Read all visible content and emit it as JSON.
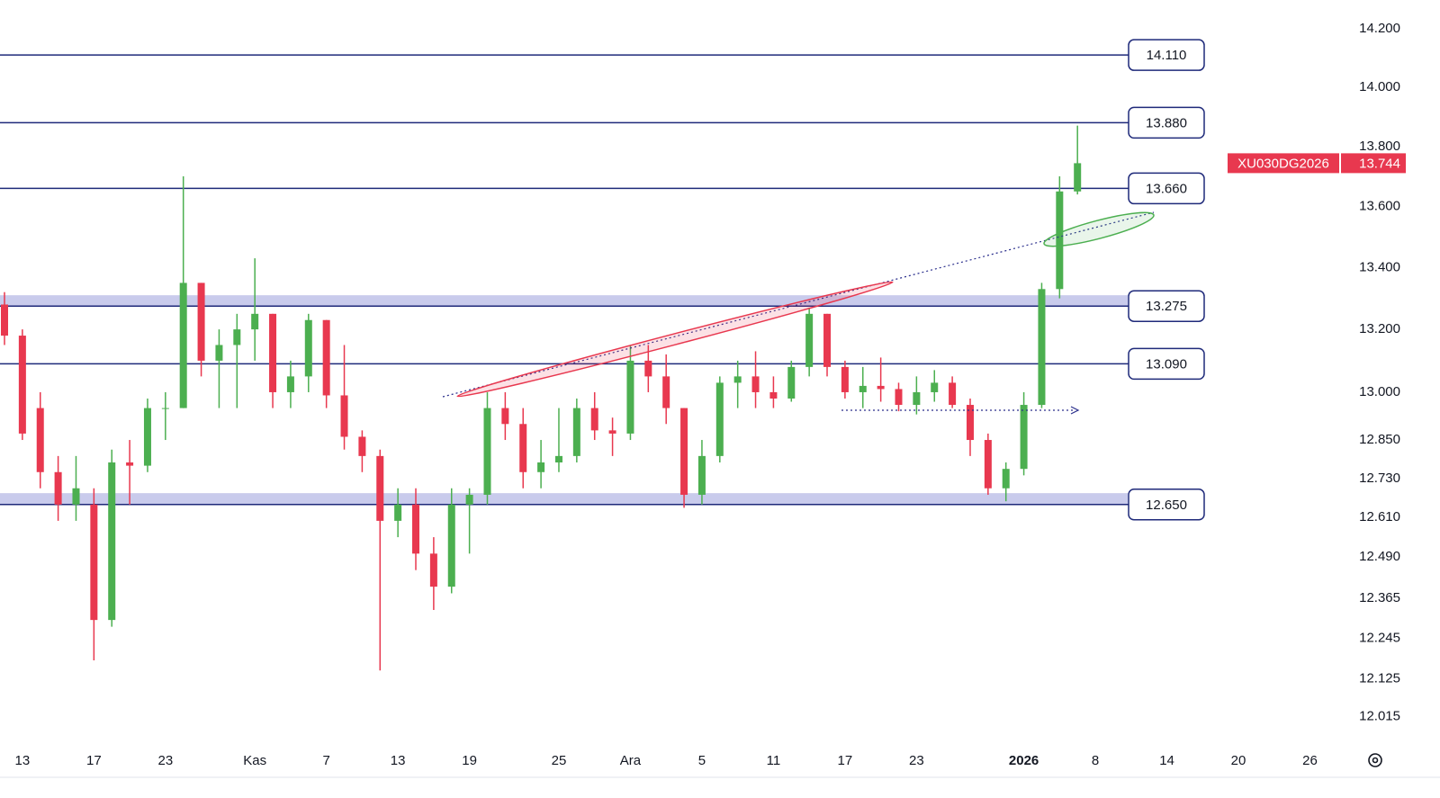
{
  "chart_data": {
    "type": "candlestick",
    "symbol": "XU030DG2026",
    "last_price": {
      "value": 13744,
      "label": "13.744"
    },
    "up_color": "#4caf50",
    "down_color": "#e8384f",
    "level_color": "#1f2a7a",
    "zone_color": "#c9cbec",
    "log_scale": true,
    "ylim": [
      11940,
      14300
    ],
    "yticks": [
      {
        "value": 14200,
        "label": "14.200"
      },
      {
        "value": 14000,
        "label": "14.000"
      },
      {
        "value": 13800,
        "label": "13.800"
      },
      {
        "value": 13600,
        "label": "13.600"
      },
      {
        "value": 13400,
        "label": "13.400"
      },
      {
        "value": 13200,
        "label": "13.200"
      },
      {
        "value": 13000,
        "label": "13.000"
      },
      {
        "value": 12850,
        "label": "12.850"
      },
      {
        "value": 12730,
        "label": "12.730"
      },
      {
        "value": 12610,
        "label": "12.610"
      },
      {
        "value": 12490,
        "label": "12.490"
      },
      {
        "value": 12365,
        "label": "12.365"
      },
      {
        "value": 12245,
        "label": "12.245"
      },
      {
        "value": 12125,
        "label": "12.125"
      },
      {
        "value": 12015,
        "label": "12.015"
      }
    ],
    "levels": [
      {
        "value": 14110,
        "label": "14.110"
      },
      {
        "value": 13880,
        "label": "13.880"
      },
      {
        "value": 13660,
        "label": "13.660"
      },
      {
        "value": 13275,
        "label": "13.275"
      },
      {
        "value": 13090,
        "label": "13.090"
      },
      {
        "value": 12650,
        "label": "12.650"
      }
    ],
    "zones": [
      [
        13275,
        13310
      ],
      [
        12650,
        12685
      ]
    ],
    "categories": [
      null,
      "13",
      null,
      null,
      null,
      "17",
      null,
      null,
      null,
      "23",
      null,
      null,
      null,
      null,
      "Kas",
      null,
      null,
      null,
      "7",
      null,
      null,
      null,
      "13",
      null,
      null,
      null,
      "19",
      null,
      null,
      null,
      null,
      "25",
      null,
      null,
      null,
      "Ara",
      null,
      null,
      null,
      "5",
      null,
      null,
      null,
      "11",
      null,
      null,
      null,
      "17",
      null,
      null,
      null,
      "23",
      null,
      null,
      null,
      null,
      null,
      "2026",
      null,
      null,
      null,
      "8",
      null,
      null,
      null,
      "14",
      null,
      null,
      null,
      "20",
      null,
      null,
      null,
      "26"
    ],
    "open": [
      13280,
      13180,
      12950,
      12750,
      12650,
      12650,
      12300,
      12780,
      12770,
      12950,
      12950,
      13350,
      13100,
      13150,
      13200,
      13250,
      13000,
      13050,
      13230,
      12990,
      12860,
      12800,
      12600,
      12650,
      12500,
      12400,
      12650,
      12680,
      12950,
      12900,
      12750,
      12780,
      12800,
      12950,
      12880,
      12870,
      13100,
      13050,
      12950,
      12680,
      12800,
      13030,
      13050,
      13000,
      12980,
      13080,
      13250,
      13080,
      13000,
      13020,
      13010,
      12960,
      13000,
      13030,
      12960,
      12850,
      12700,
      12760,
      12960,
      13330,
      13650,
      null,
      null,
      null,
      null,
      null,
      null,
      null,
      null,
      null,
      null,
      null,
      null,
      null
    ],
    "high": [
      13320,
      13200,
      13000,
      12800,
      12800,
      12700,
      12820,
      12850,
      12980,
      13000,
      13700,
      13350,
      13200,
      13250,
      13430,
      13250,
      13100,
      13250,
      13230,
      13150,
      12880,
      12820,
      12700,
      12700,
      12550,
      12700,
      12700,
      13000,
      13000,
      12950,
      12850,
      12950,
      12980,
      13000,
      12920,
      13150,
      13150,
      13120,
      12950,
      12850,
      13050,
      13100,
      13130,
      13050,
      13100,
      13270,
      13250,
      13100,
      13080,
      13110,
      13030,
      13050,
      13070,
      13050,
      12980,
      12870,
      12780,
      13000,
      13350,
      13700,
      13870,
      null,
      null,
      null,
      null,
      null,
      null,
      null,
      null,
      null,
      null,
      null,
      null,
      null
    ],
    "low": [
      13150,
      12850,
      12700,
      12600,
      12600,
      12180,
      12280,
      12650,
      12750,
      12850,
      12950,
      13050,
      12950,
      12950,
      13100,
      12950,
      12950,
      13000,
      12950,
      12820,
      12750,
      12150,
      12550,
      12450,
      12330,
      12380,
      12500,
      12650,
      12850,
      12700,
      12700,
      12750,
      12780,
      12850,
      12800,
      12850,
      13000,
      12900,
      12640,
      12650,
      12780,
      12950,
      12950,
      12950,
      12970,
      13050,
      13050,
      12980,
      12950,
      12970,
      12940,
      12930,
      12970,
      12950,
      12800,
      12680,
      12660,
      12740,
      12950,
      13300,
      13640,
      null,
      null,
      null,
      null,
      null,
      null,
      null,
      null,
      null,
      null,
      null,
      null,
      null
    ],
    "close": [
      13180,
      12870,
      12750,
      12650,
      12700,
      12300,
      12780,
      12770,
      12950,
      12950,
      13350,
      13100,
      13150,
      13200,
      13250,
      13000,
      13050,
      13230,
      12990,
      12860,
      12800,
      12600,
      12650,
      12500,
      12400,
      12650,
      12680,
      12950,
      12900,
      12750,
      12780,
      12800,
      12950,
      12880,
      12870,
      13100,
      13050,
      12950,
      12680,
      12800,
      13030,
      13050,
      13000,
      12980,
      13080,
      13250,
      13080,
      13000,
      13020,
      13010,
      12960,
      13000,
      13030,
      12960,
      12850,
      12700,
      12760,
      12960,
      13330,
      13650,
      13744,
      null,
      null,
      null,
      null,
      null,
      null,
      null,
      null,
      null,
      null,
      null,
      null,
      null
    ]
  }
}
